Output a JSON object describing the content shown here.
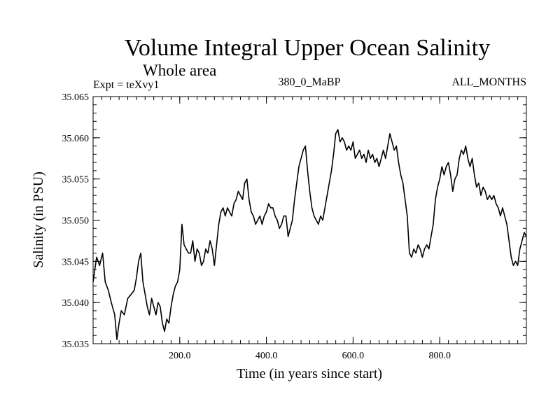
{
  "chart_data": {
    "type": "line",
    "title": "Volume Integral Upper Ocean Salinity",
    "subtitle": "Whole area",
    "header_left": "Expt = teXvy1",
    "header_center": "380_0_MaBP",
    "header_right": "ALL_MONTHS",
    "xlabel": "Time (in years since start)",
    "ylabel": "Salinity (in PSU)",
    "xlim": [
      0,
      1000
    ],
    "ylim": [
      35.035,
      35.065
    ],
    "x_tick_values": [
      200,
      400,
      600,
      800
    ],
    "x_tick_labels": [
      "200.0",
      "400.0",
      "600.0",
      "800.0"
    ],
    "x_minor_step": 20,
    "y_tick_values": [
      35.035,
      35.04,
      35.045,
      35.05,
      35.055,
      35.06,
      35.065
    ],
    "y_tick_labels": [
      "35.035",
      "35.040",
      "35.045",
      "35.050",
      "35.055",
      "35.060",
      "35.065"
    ],
    "y_minor_step": 0.001,
    "series": [
      {
        "name": "salinity",
        "color": "#000000",
        "x": [
          0,
          8,
          15,
          22,
          28,
          35,
          42,
          50,
          55,
          60,
          65,
          72,
          80,
          88,
          95,
          100,
          105,
          110,
          115,
          120,
          125,
          130,
          135,
          140,
          145,
          150,
          155,
          160,
          165,
          170,
          175,
          180,
          185,
          190,
          195,
          200,
          205,
          210,
          215,
          220,
          225,
          230,
          235,
          240,
          245,
          250,
          255,
          260,
          265,
          270,
          275,
          280,
          285,
          290,
          295,
          300,
          305,
          310,
          315,
          320,
          325,
          330,
          335,
          340,
          345,
          350,
          355,
          360,
          365,
          370,
          375,
          380,
          385,
          390,
          395,
          400,
          405,
          410,
          415,
          420,
          425,
          430,
          435,
          440,
          445,
          450,
          455,
          460,
          465,
          470,
          475,
          480,
          485,
          490,
          495,
          500,
          505,
          510,
          515,
          520,
          525,
          530,
          535,
          540,
          545,
          550,
          555,
          560,
          565,
          570,
          575,
          580,
          585,
          590,
          595,
          600,
          605,
          610,
          615,
          620,
          625,
          630,
          635,
          640,
          645,
          650,
          655,
          660,
          665,
          670,
          675,
          680,
          685,
          690,
          695,
          700,
          705,
          710,
          715,
          720,
          725,
          730,
          735,
          740,
          745,
          750,
          755,
          760,
          765,
          770,
          775,
          780,
          785,
          790,
          795,
          800,
          805,
          810,
          815,
          820,
          825,
          830,
          835,
          840,
          845,
          850,
          855,
          860,
          865,
          870,
          875,
          880,
          885,
          890,
          895,
          900,
          905,
          910,
          915,
          920,
          925,
          930,
          935,
          940,
          945,
          950,
          955,
          960,
          965,
          970,
          975,
          980,
          985,
          990,
          995,
          1000
        ],
        "values": [
          35.0425,
          35.0455,
          35.0445,
          35.046,
          35.0425,
          35.0415,
          35.04,
          35.0385,
          35.0355,
          35.0375,
          35.039,
          35.0385,
          35.0405,
          35.041,
          35.0415,
          35.043,
          35.045,
          35.046,
          35.0425,
          35.041,
          35.0395,
          35.0385,
          35.0405,
          35.0395,
          35.0385,
          35.04,
          35.0395,
          35.0375,
          35.0365,
          35.038,
          35.0375,
          35.0395,
          35.041,
          35.042,
          35.0425,
          35.044,
          35.0495,
          35.047,
          35.0465,
          35.046,
          35.046,
          35.0475,
          35.045,
          35.0465,
          35.046,
          35.0445,
          35.045,
          35.0465,
          35.046,
          35.0475,
          35.0465,
          35.0445,
          35.047,
          35.0495,
          35.051,
          35.0515,
          35.0505,
          35.0515,
          35.051,
          35.0505,
          35.052,
          35.0525,
          35.0535,
          35.053,
          35.0525,
          35.0545,
          35.055,
          35.0525,
          35.051,
          35.0505,
          35.0495,
          35.05,
          35.0505,
          35.0495,
          35.0505,
          35.051,
          35.052,
          35.0515,
          35.0515,
          35.0505,
          35.05,
          35.049,
          35.0495,
          35.0505,
          35.0505,
          35.048,
          35.049,
          35.05,
          35.0525,
          35.0545,
          35.0565,
          35.0575,
          35.0585,
          35.059,
          35.056,
          35.0535,
          35.0515,
          35.0505,
          35.05,
          35.0495,
          35.0505,
          35.05,
          35.0515,
          35.053,
          35.0545,
          35.056,
          35.058,
          35.0605,
          35.061,
          35.0595,
          35.06,
          35.0595,
          35.0585,
          35.059,
          35.0585,
          35.0595,
          35.0575,
          35.058,
          35.0585,
          35.0575,
          35.058,
          35.057,
          35.0585,
          35.0575,
          35.058,
          35.057,
          35.0575,
          35.0565,
          35.0575,
          35.0585,
          35.0575,
          35.059,
          35.0605,
          35.0595,
          35.0585,
          35.059,
          35.057,
          35.0555,
          35.0545,
          35.0525,
          35.0505,
          35.046,
          35.0455,
          35.0465,
          35.046,
          35.047,
          35.0465,
          35.0455,
          35.0465,
          35.047,
          35.0465,
          35.048,
          35.0495,
          35.0525,
          35.054,
          35.055,
          35.0565,
          35.0555,
          35.0565,
          35.057,
          35.0555,
          35.0535,
          35.055,
          35.0555,
          35.0575,
          35.0585,
          35.058,
          35.059,
          35.0575,
          35.0565,
          35.0575,
          35.0555,
          35.054,
          35.0545,
          35.053,
          35.054,
          35.0535,
          35.0525,
          35.053,
          35.0525,
          35.053,
          35.052,
          35.0515,
          35.0505,
          35.0515,
          35.0505,
          35.0495,
          35.0475,
          35.0455,
          35.0445,
          35.045,
          35.0445,
          35.0465,
          35.0475,
          35.0485,
          35.048
        ]
      }
    ]
  }
}
